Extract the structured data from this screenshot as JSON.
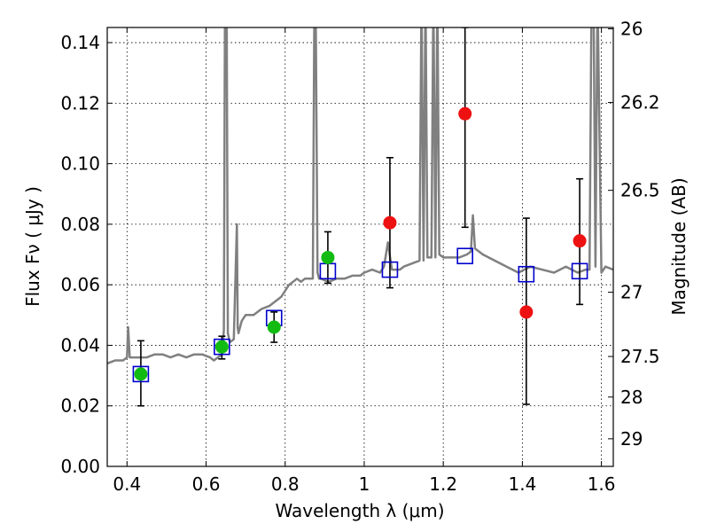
{
  "chart_data": {
    "type": "scatter",
    "title": "",
    "xlabel": "Wavelength  λ (μm)",
    "ylabel": "Flux  Fν  ( μJy )",
    "y2label": "Magnitude (AB)",
    "xlim": [
      0.35,
      1.63
    ],
    "ylim": [
      0.0,
      0.145
    ],
    "grid": true,
    "x_ticks": [
      {
        "value": 0.4,
        "label": "0.4"
      },
      {
        "value": 0.6,
        "label": "0.6"
      },
      {
        "value": 0.8,
        "label": "0.8"
      },
      {
        "value": 1.0,
        "label": "1"
      },
      {
        "value": 1.2,
        "label": "1.2"
      },
      {
        "value": 1.4,
        "label": "1.4"
      },
      {
        "value": 1.6,
        "label": "1.6"
      }
    ],
    "y_ticks": [
      {
        "value": 0.0,
        "label": "0.00"
      },
      {
        "value": 0.02,
        "label": "0.02"
      },
      {
        "value": 0.04,
        "label": "0.04"
      },
      {
        "value": 0.06,
        "label": "0.06"
      },
      {
        "value": 0.08,
        "label": "0.08"
      },
      {
        "value": 0.1,
        "label": "0.10"
      },
      {
        "value": 0.12,
        "label": "0.12"
      },
      {
        "value": 0.14,
        "label": "0.14"
      }
    ],
    "y2_ticks": [
      {
        "mag": 26,
        "label": "26"
      },
      {
        "mag": 26.2,
        "label": "26.2"
      },
      {
        "mag": 26.5,
        "label": "26.5"
      },
      {
        "mag": 27,
        "label": "27"
      },
      {
        "mag": 27.5,
        "label": "27.5"
      },
      {
        "mag": 28,
        "label": "28"
      },
      {
        "mag": 29,
        "label": "29"
      }
    ],
    "colors": {
      "template": "#808080",
      "model": "#0000cc",
      "optical": "#11bb11",
      "infrared": "#ee1111",
      "errorbar": "#000000"
    },
    "template_spectrum": {
      "x": [
        0.35,
        0.37,
        0.39,
        0.4,
        0.403,
        0.407,
        0.41,
        0.43,
        0.45,
        0.47,
        0.49,
        0.51,
        0.53,
        0.55,
        0.57,
        0.59,
        0.61,
        0.62,
        0.63,
        0.64,
        0.645,
        0.648,
        0.652,
        0.655,
        0.66,
        0.67,
        0.678,
        0.68,
        0.682,
        0.69,
        0.7,
        0.72,
        0.74,
        0.76,
        0.78,
        0.79,
        0.8,
        0.81,
        0.82,
        0.83,
        0.84,
        0.85,
        0.86,
        0.87,
        0.874,
        0.877,
        0.882,
        0.886,
        0.89,
        0.91,
        0.93,
        0.95,
        0.97,
        0.99,
        1.0,
        1.02,
        1.04,
        1.05,
        1.06,
        1.07,
        1.08,
        1.09,
        1.1,
        1.12,
        1.14,
        1.145,
        1.15,
        1.155,
        1.16,
        1.17,
        1.175,
        1.18,
        1.185,
        1.19,
        1.2,
        1.22,
        1.24,
        1.26,
        1.27,
        1.275,
        1.28,
        1.3,
        1.33,
        1.36,
        1.39,
        1.42,
        1.45,
        1.48,
        1.51,
        1.54,
        1.56,
        1.57,
        1.575,
        1.58,
        1.585,
        1.59,
        1.6,
        1.61,
        1.63
      ],
      "y": [
        0.034,
        0.035,
        0.035,
        0.036,
        0.046,
        0.036,
        0.036,
        0.036,
        0.036,
        0.037,
        0.037,
        0.036,
        0.037,
        0.036,
        0.037,
        0.037,
        0.036,
        0.035,
        0.036,
        0.037,
        0.045,
        0.2,
        0.2,
        0.044,
        0.041,
        0.042,
        0.08,
        0.046,
        0.044,
        0.048,
        0.05,
        0.05,
        0.052,
        0.053,
        0.055,
        0.056,
        0.058,
        0.06,
        0.061,
        0.062,
        0.061,
        0.062,
        0.062,
        0.062,
        0.2,
        0.2,
        0.064,
        0.062,
        0.062,
        0.061,
        0.062,
        0.062,
        0.063,
        0.063,
        0.064,
        0.065,
        0.064,
        0.066,
        0.074,
        0.065,
        0.065,
        0.065,
        0.066,
        0.067,
        0.068,
        0.2,
        0.068,
        0.2,
        0.069,
        0.069,
        0.2,
        0.069,
        0.2,
        0.07,
        0.069,
        0.069,
        0.069,
        0.07,
        0.071,
        0.083,
        0.072,
        0.07,
        0.068,
        0.066,
        0.064,
        0.066,
        0.065,
        0.064,
        0.066,
        0.064,
        0.065,
        0.065,
        0.2,
        0.2,
        0.066,
        0.2,
        0.064,
        0.066,
        0.065
      ]
    },
    "series": [
      {
        "kind": "model-boxes",
        "points": [
          {
            "x": 0.435,
            "y": 0.0305
          },
          {
            "x": 0.64,
            "y": 0.0395
          },
          {
            "x": 0.772,
            "y": 0.049
          },
          {
            "x": 0.908,
            "y": 0.0645
          },
          {
            "x": 1.065,
            "y": 0.065
          },
          {
            "x": 1.255,
            "y": 0.0695
          },
          {
            "x": 1.41,
            "y": 0.0635
          },
          {
            "x": 1.545,
            "y": 0.0645
          }
        ]
      },
      {
        "kind": "optical-detections",
        "points": [
          {
            "x": 0.435,
            "y": 0.0305,
            "yerr": [
              0.02,
              0.0415
            ]
          },
          {
            "x": 0.64,
            "y": 0.0395,
            "yerr": [
              0.0355,
              0.043
            ]
          },
          {
            "x": 0.772,
            "y": 0.046,
            "yerr": [
              0.041,
              0.051
            ]
          },
          {
            "x": 0.908,
            "y": 0.069,
            "yerr": [
              0.0605,
              0.0775
            ]
          }
        ]
      },
      {
        "kind": "infrared-detections",
        "points": [
          {
            "x": 1.065,
            "y": 0.0805,
            "yerr": [
              0.059,
              0.102
            ]
          },
          {
            "x": 1.255,
            "y": 0.1165,
            "yerr": [
              0.079,
              0.145
            ]
          },
          {
            "x": 1.41,
            "y": 0.051,
            "yerr": [
              0.0205,
              0.082
            ]
          },
          {
            "x": 1.545,
            "y": 0.0745,
            "yerr": [
              0.0535,
              0.095
            ]
          }
        ]
      }
    ]
  }
}
